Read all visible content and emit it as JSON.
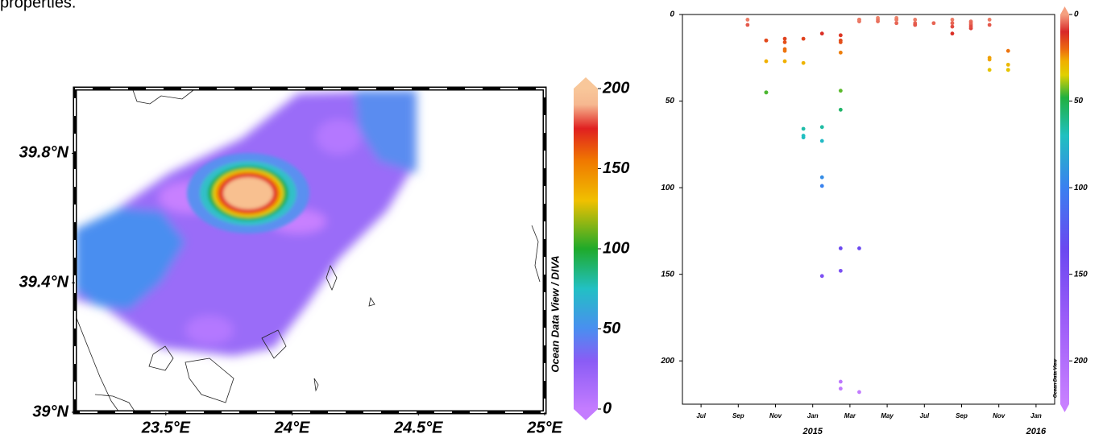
{
  "caption": "properties.",
  "chart_data": [
    {
      "type": "map",
      "xlim": [
        23.14,
        25
      ],
      "ylim": [
        39,
        40
      ],
      "xticks": [
        {
          "value": 23.5,
          "label": "23.5°E"
        },
        {
          "value": 24,
          "label": "24°E"
        },
        {
          "value": 24.5,
          "label": "24.5°E"
        },
        {
          "value": 25,
          "label": "25°E"
        }
      ],
      "yticks": [
        {
          "value": 39,
          "label": "39°N"
        },
        {
          "value": 39.4,
          "label": "39.4°N"
        },
        {
          "value": 39.8,
          "label": "39.8°N"
        }
      ],
      "colorbar": {
        "label": "Ocean Data View / DIVA",
        "lim": [
          0,
          200
        ],
        "ticks": [
          0,
          50,
          100,
          150,
          200
        ],
        "colorscale": [
          [
            0,
            "#c47cff"
          ],
          [
            30,
            "#8a5cf5"
          ],
          [
            50,
            "#4a8ef0"
          ],
          [
            75,
            "#22c0c4"
          ],
          [
            100,
            "#1faa2a"
          ],
          [
            130,
            "#f0c000"
          ],
          [
            155,
            "#f07800"
          ],
          [
            175,
            "#e02020"
          ],
          [
            190,
            "#f6b890"
          ],
          [
            200,
            "#f8c79a"
          ]
        ]
      }
    },
    {
      "type": "scatter",
      "xlim": [
        "2014-06",
        "2016-02"
      ],
      "ylim": [
        225,
        0
      ],
      "xticks": [
        {
          "value": "2014-07",
          "label": "Jul"
        },
        {
          "value": "2014-09",
          "label": "Sep"
        },
        {
          "value": "2014-11",
          "label": "Nov"
        },
        {
          "value": "2015-01",
          "label": "Jan"
        },
        {
          "value": "2015-03",
          "label": "Mar"
        },
        {
          "value": "2015-05",
          "label": "May"
        },
        {
          "value": "2015-07",
          "label": "Jul"
        },
        {
          "value": "2015-09",
          "label": "Sep"
        },
        {
          "value": "2015-11",
          "label": "Nov"
        },
        {
          "value": "2016-01",
          "label": "Jan"
        }
      ],
      "year_ticks": [
        {
          "value": "2015-01",
          "label": "2015"
        },
        {
          "value": "2016-01",
          "label": "2016"
        }
      ],
      "yticks": [
        0,
        50,
        100,
        150,
        200
      ],
      "x": [
        "2014-09",
        "2014-09",
        "2014-10",
        "2014-10",
        "2014-10",
        "2014-10",
        "2014-10",
        "2014-11",
        "2014-11",
        "2014-11",
        "2014-11",
        "2014-11",
        "2014-12",
        "2014-12",
        "2014-12",
        "2014-12",
        "2014-12",
        "2015-01",
        "2015-01",
        "2015-01",
        "2015-01",
        "2015-01",
        "2015-01",
        "2015-02",
        "2015-02",
        "2015-02",
        "2015-02",
        "2015-02",
        "2015-02",
        "2015-02",
        "2015-02",
        "2015-02",
        "2015-02",
        "2015-03",
        "2015-03",
        "2015-03",
        "2015-03",
        "2015-03",
        "2015-03",
        "2015-04",
        "2015-04",
        "2015-04",
        "2015-05",
        "2015-05",
        "2015-05",
        "2015-05",
        "2015-06",
        "2015-06",
        "2015-06",
        "2015-06",
        "2015-07",
        "2015-08",
        "2015-08",
        "2015-08",
        "2015-08",
        "2015-09",
        "2015-09",
        "2015-09",
        "2015-09",
        "2015-09",
        "2015-10",
        "2015-10",
        "2015-10",
        "2015-10",
        "2015-10",
        "2015-11",
        "2015-11",
        "2015-11",
        "2015-11"
      ],
      "values": [
        3,
        6,
        15,
        15,
        27,
        45,
        45,
        20,
        14,
        21,
        16,
        27,
        14,
        28,
        70,
        71,
        66,
        65,
        11,
        73,
        94,
        99,
        151,
        212,
        148,
        15,
        135,
        44,
        22,
        216,
        12,
        55,
        16,
        218,
        135,
        4,
        3,
        3,
        3,
        2,
        3,
        4,
        2,
        3,
        5,
        3,
        5,
        3,
        6,
        6,
        5,
        11,
        7,
        3,
        5,
        4,
        6,
        8,
        5,
        7,
        3,
        6,
        25,
        32,
        26,
        32,
        29,
        32,
        21
      ],
      "colorbar": {
        "label": "Ocean Data View",
        "lim": [
          225,
          0
        ],
        "ticks": [
          0,
          50,
          100,
          150,
          200
        ],
        "colorscale": [
          [
            0,
            "#f5a080"
          ],
          [
            10,
            "#d82828"
          ],
          [
            20,
            "#ec6a10"
          ],
          [
            27,
            "#f0b000"
          ],
          [
            35,
            "#e0d000"
          ],
          [
            48,
            "#20b040"
          ],
          [
            70,
            "#20c0c0"
          ],
          [
            100,
            "#3a80f0"
          ],
          [
            135,
            "#6a48f0"
          ],
          [
            175,
            "#9a5cf8"
          ],
          [
            225,
            "#c880ff"
          ]
        ]
      }
    }
  ]
}
